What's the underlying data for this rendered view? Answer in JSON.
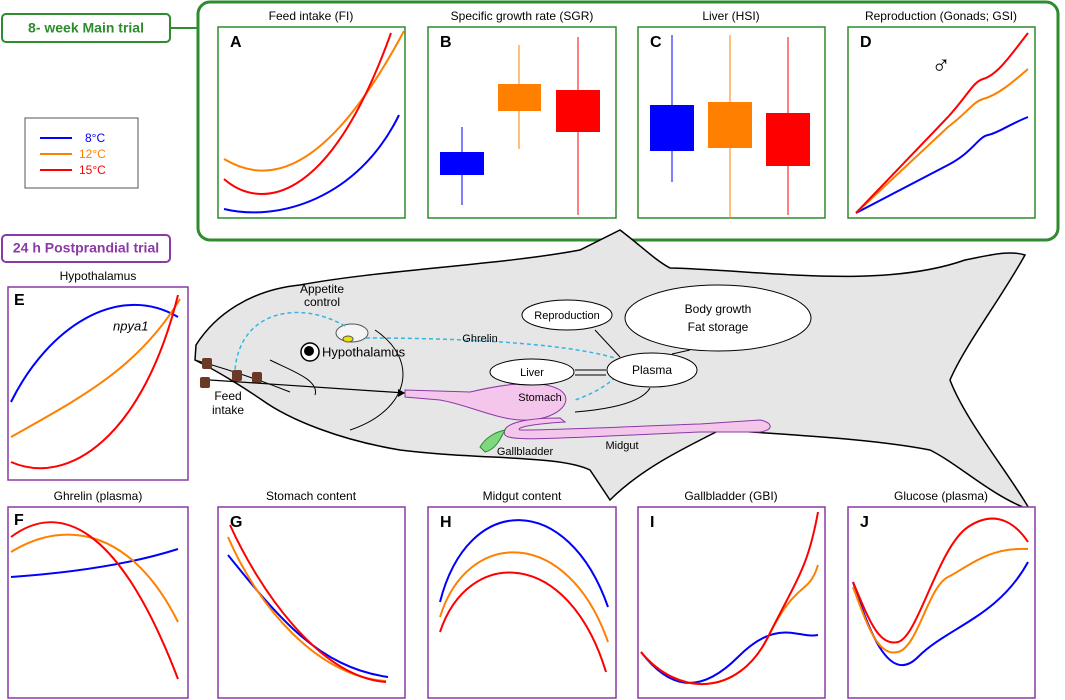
{
  "main_trial": {
    "label": "8- week Main trial",
    "panels": [
      {
        "letter": "A",
        "title": "Feed intake (FI)"
      },
      {
        "letter": "B",
        "title": "Specific growth rate (SGR)"
      },
      {
        "letter": "C",
        "title": "Liver (HSI)"
      },
      {
        "letter": "D",
        "title": "Reproduction (Gonads; GSI)",
        "symbol": "♂"
      }
    ]
  },
  "legend": [
    {
      "label": "8°C",
      "color": "#0000ff"
    },
    {
      "label": "12°C",
      "color": "#ff8000"
    },
    {
      "label": "15°C",
      "color": "#ff0000"
    }
  ],
  "postprandial_trial": {
    "label": "24 h Postprandial trial",
    "panels": [
      {
        "letter": "E",
        "title": "Hypothalamus",
        "annotation": "npya1"
      },
      {
        "letter": "F",
        "title": "Ghrelin (plasma)"
      },
      {
        "letter": "G",
        "title": "Stomach content"
      },
      {
        "letter": "H",
        "title": "Midgut content"
      },
      {
        "letter": "I",
        "title": "Gallbladder (GBI)"
      },
      {
        "letter": "J",
        "title": "Glucose (plasma)"
      }
    ]
  },
  "fish": {
    "appetite": [
      "Appetite",
      "control"
    ],
    "hypothalamus": "Hypothalamus",
    "ghrelin": "Ghrelin",
    "reproduction": "Reproduction",
    "body": [
      "Body growth",
      "Fat storage"
    ],
    "liver": "Liver",
    "plasma": "Plasma",
    "stomach": "Stomach",
    "midgut": "Midgut",
    "gallbladder": "Gallbladder",
    "feed": [
      "Feed",
      "intake"
    ]
  }
}
